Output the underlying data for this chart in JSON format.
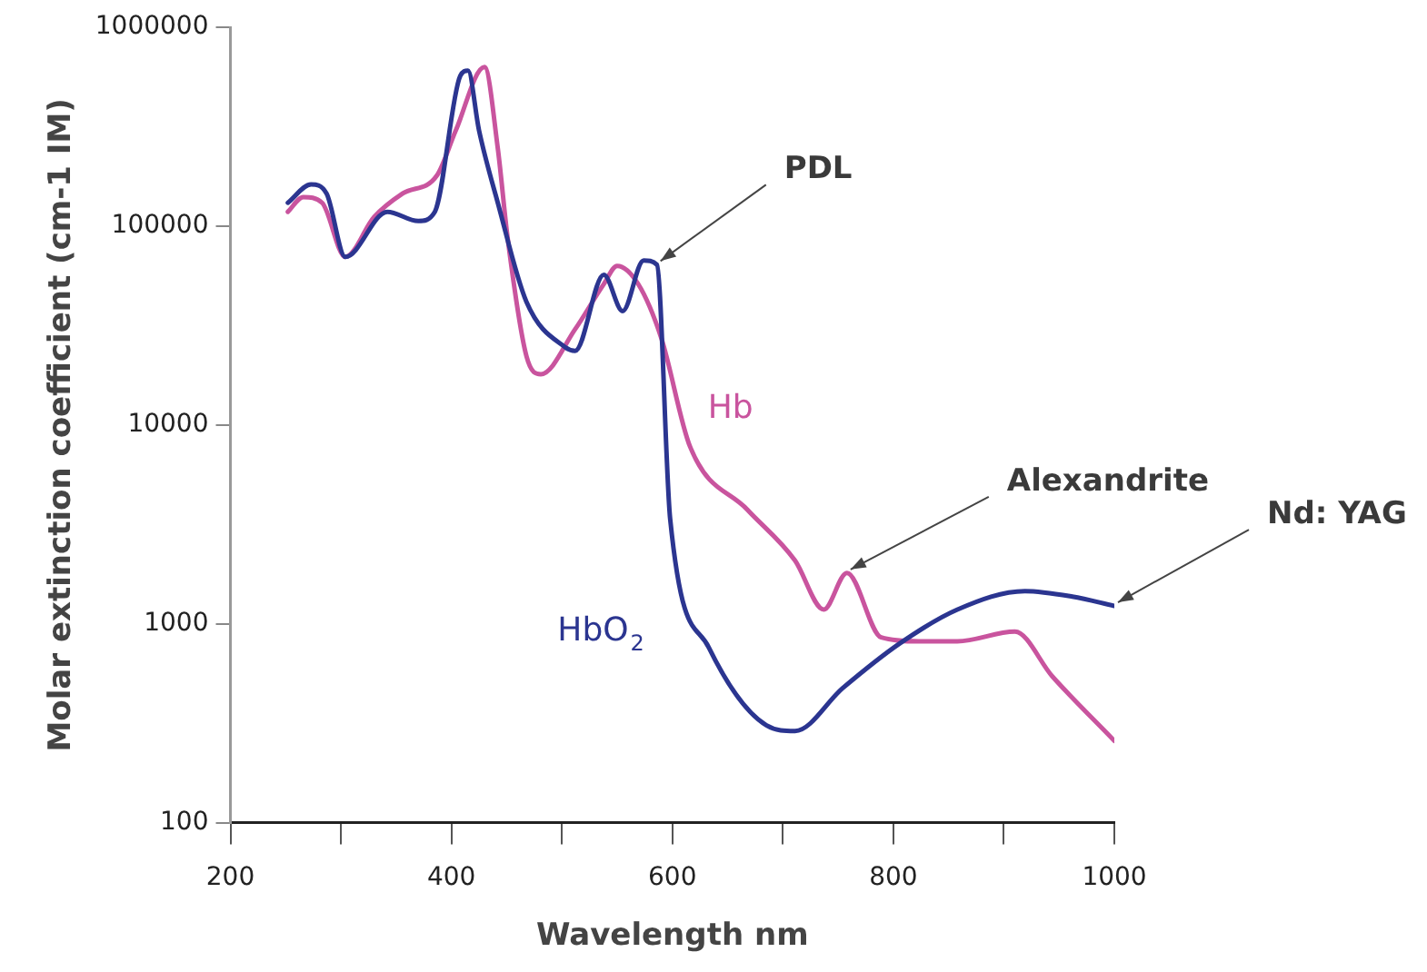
{
  "chart_data": {
    "type": "line",
    "xlabel": "Wavelength nm",
    "ylabel": "Molar extinction coefficient (cm-1 IM)",
    "log": "y",
    "grid": false,
    "legend": false,
    "marker": "none",
    "line_style": "solid",
    "xlim": [
      200,
      1000
    ],
    "xticks": [
      200,
      {
        "value": 300,
        "label": null
      },
      400,
      {
        "value": 500,
        "label": null
      },
      600,
      {
        "value": 700,
        "label": null
      },
      800,
      {
        "value": 900,
        "label": null
      },
      1000
    ],
    "ylim": [
      100,
      1000000
    ],
    "yticks": [
      100,
      1000,
      10000,
      100000,
      1000000
    ],
    "series": [
      {
        "name": "HbO$_{2}$",
        "color": "#2b3590",
        "x": [
          252,
          273,
          287,
          304,
          342,
          370,
          385,
          408,
          415,
          425,
          442,
          468,
          503,
          512,
          538,
          555,
          574,
          586,
          598,
          633,
          685,
          711,
          754,
          806,
          858,
          919,
          962,
          1000
        ],
        "values": [
          131000,
          162000,
          146000,
          70000,
          118000,
          106000,
          118000,
          569000,
          605000,
          303000,
          131000,
          41500,
          24600,
          23600,
          56900,
          37400,
          67200,
          64000,
          3370,
          760,
          309,
          289,
          474,
          798,
          1180,
          1460,
          1370,
          1230
        ]
      },
      {
        "name": "Hb",
        "color": "#c9549e",
        "x": [
          252,
          266,
          283,
          304,
          330,
          356,
          387,
          404,
          430,
          442,
          451,
          468,
          481,
          512,
          538,
          550,
          569,
          590,
          616,
          668,
          711,
          737,
          758,
          789,
          823,
          858,
          910,
          944,
          1000
        ],
        "values": [
          118000,
          140000,
          131000,
          70000,
          111000,
          146000,
          180000,
          303000,
          631000,
          246000,
          86300,
          22100,
          18000,
          30300,
          51200,
          63100,
          51200,
          27300,
          7780,
          3740,
          2080,
          1180,
          1800,
          854,
          817,
          817,
          914,
          543,
          258
        ]
      }
    ],
    "annotations": [
      {
        "text": "PDL",
        "x": 586,
        "y": 64000
      },
      {
        "text": "Alexandrite",
        "x": 758,
        "y": 1800
      },
      {
        "text": "Nd: YAG",
        "x": 1000,
        "y": 1230
      }
    ]
  }
}
